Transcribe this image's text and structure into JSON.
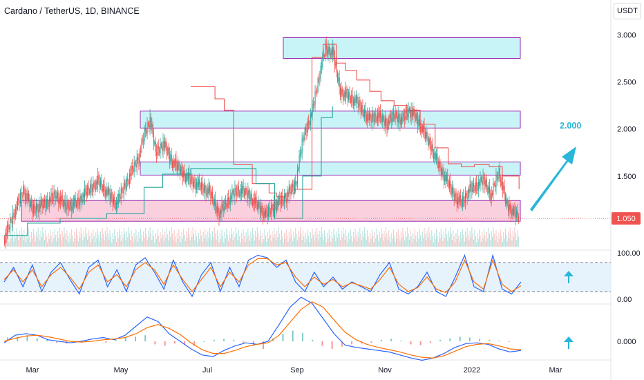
{
  "header": {
    "title": "Cardano / TetherUS, 1D, BINANCE",
    "currency": "USDT"
  },
  "colors": {
    "up": "#26a69a",
    "down": "#ef5350",
    "band_purple": "#9c27b0",
    "zone_cyan": "#b2f0f4",
    "zone_pink": "#f8bbd0",
    "arrow": "#29b6d8",
    "rsi_blue": "#2962ff",
    "rsi_orange": "#ff6d00",
    "stop_red": "#ef5350",
    "stop_green": "#26a69a",
    "price_label": "#ef5350"
  },
  "chart_data": [
    {
      "type": "candlestick",
      "name": "price",
      "x_ticks": [
        "Mar",
        "May",
        "Jul",
        "Sep",
        "Nov",
        "2022",
        "Mar"
      ],
      "y_ticks": [
        "3.000",
        "2.500",
        "2.000",
        "1.500",
        "1.050"
      ],
      "ylim": [
        0.75,
        3.15
      ],
      "current_price": "1.050",
      "annotation": "2.000",
      "zones": [
        {
          "low": 2.75,
          "high": 2.97,
          "color": "cyan"
        },
        {
          "low": 2.01,
          "high": 2.19,
          "color": "cyan"
        },
        {
          "low": 1.51,
          "high": 1.65,
          "color": "cyan"
        },
        {
          "low": 1.02,
          "high": 1.24,
          "color": "pink"
        }
      ],
      "close_path": [
        [
          0,
          0.85
        ],
        [
          8,
          1.05
        ],
        [
          14,
          1.2
        ],
        [
          20,
          1.35
        ],
        [
          30,
          1.15
        ],
        [
          45,
          1.22
        ],
        [
          55,
          1.3
        ],
        [
          65,
          1.18
        ],
        [
          78,
          1.22
        ],
        [
          90,
          1.35
        ],
        [
          100,
          1.45
        ],
        [
          112,
          1.3
        ],
        [
          120,
          1.2
        ],
        [
          128,
          1.38
        ],
        [
          136,
          1.55
        ],
        [
          144,
          1.7
        ],
        [
          150,
          1.95
        ],
        [
          156,
          2.1
        ],
        [
          162,
          1.75
        ],
        [
          170,
          1.85
        ],
        [
          180,
          1.65
        ],
        [
          190,
          1.55
        ],
        [
          200,
          1.45
        ],
        [
          212,
          1.38
        ],
        [
          220,
          1.32
        ],
        [
          230,
          1.1
        ],
        [
          240,
          1.25
        ],
        [
          250,
          1.35
        ],
        [
          262,
          1.3
        ],
        [
          272,
          1.18
        ],
        [
          280,
          1.08
        ],
        [
          290,
          1.2
        ],
        [
          302,
          1.28
        ],
        [
          312,
          1.42
        ],
        [
          320,
          1.9
        ],
        [
          330,
          2.2
        ],
        [
          338,
          2.6
        ],
        [
          344,
          2.85
        ],
        [
          352,
          2.8
        ],
        [
          360,
          2.4
        ],
        [
          368,
          2.35
        ],
        [
          376,
          2.3
        ],
        [
          384,
          2.2
        ],
        [
          392,
          2.1
        ],
        [
          400,
          2.15
        ],
        [
          410,
          2.05
        ],
        [
          418,
          2.15
        ],
        [
          426,
          2.1
        ],
        [
          434,
          2.2
        ],
        [
          442,
          2.1
        ],
        [
          450,
          1.95
        ],
        [
          458,
          1.8
        ],
        [
          466,
          1.6
        ],
        [
          474,
          1.45
        ],
        [
          482,
          1.3
        ],
        [
          490,
          1.22
        ],
        [
          498,
          1.35
        ],
        [
          506,
          1.4
        ],
        [
          514,
          1.45
        ],
        [
          522,
          1.3
        ],
        [
          530,
          1.55
        ],
        [
          538,
          1.2
        ],
        [
          546,
          1.1
        ],
        [
          552,
          1.06
        ]
      ],
      "trail_stop": [
        [
          200,
          2.45
        ],
        [
          214,
          2.45
        ],
        [
          226,
          2.32
        ],
        [
          236,
          2.2
        ],
        [
          246,
          1.62
        ],
        [
          258,
          1.62
        ],
        [
          266,
          1.42
        ],
        [
          274,
          1.42
        ],
        [
          284,
          1.32
        ],
        [
          292,
          1.28
        ],
        [
          302,
          1.32
        ],
        [
          312,
          1.36
        ],
        [
          330,
          2.76
        ],
        [
          342,
          2.9
        ],
        [
          356,
          2.7
        ],
        [
          366,
          2.62
        ],
        [
          378,
          2.52
        ],
        [
          392,
          2.4
        ],
        [
          404,
          2.3
        ],
        [
          418,
          2.25
        ],
        [
          432,
          2.2
        ],
        [
          446,
          2.05
        ],
        [
          462,
          1.8
        ],
        [
          476,
          1.63
        ],
        [
          490,
          1.6
        ],
        [
          504,
          1.62
        ],
        [
          520,
          1.6
        ],
        [
          534,
          1.5
        ],
        [
          552,
          1.36
        ]
      ],
      "trail_support": [
        [
          0,
          0.87
        ],
        [
          25,
          1.0
        ],
        [
          60,
          1.05
        ],
        [
          110,
          1.1
        ],
        [
          150,
          1.38
        ],
        [
          170,
          1.52
        ],
        [
          200,
          1.58
        ],
        [
          270,
          1.42
        ],
        [
          290,
          1.05
        ],
        [
          320,
          1.5
        ],
        [
          340,
          2.12
        ],
        [
          352,
          2.24
        ]
      ]
    },
    {
      "type": "line",
      "name": "oscillator",
      "y_ticks": [
        "100.00",
        "0.00"
      ],
      "upper_band": 80,
      "lower_band": 20,
      "series": [
        {
          "color": "#2962ff",
          "values": [
            40,
            70,
            30,
            75,
            20,
            60,
            80,
            45,
            15,
            70,
            85,
            30,
            65,
            20,
            75,
            90,
            60,
            25,
            85,
            40,
            10,
            55,
            80,
            20,
            70,
            30,
            85,
            95,
            90,
            70,
            85,
            40,
            20,
            60,
            30,
            50,
            25,
            40,
            30,
            20,
            55,
            80,
            25,
            15,
            30,
            60,
            20,
            10,
            50,
            95,
            30,
            20,
            95,
            25,
            15,
            40
          ]
        },
        {
          "color": "#ff6d00",
          "values": [
            45,
            65,
            40,
            65,
            30,
            55,
            70,
            50,
            25,
            60,
            75,
            40,
            55,
            30,
            65,
            80,
            65,
            35,
            75,
            45,
            20,
            45,
            70,
            30,
            60,
            40,
            75,
            88,
            88,
            75,
            80,
            50,
            30,
            50,
            35,
            45,
            30,
            38,
            32,
            25,
            45,
            70,
            35,
            20,
            28,
            50,
            25,
            18,
            40,
            85,
            40,
            25,
            85,
            35,
            20,
            32
          ]
        }
      ]
    },
    {
      "type": "histogram",
      "name": "macd",
      "y_ticks": [
        "0.000"
      ],
      "bars": [
        0.05,
        0.06,
        0.08,
        0.04,
        0.02,
        -0.02,
        -0.03,
        0.01,
        0.02,
        0.01,
        -0.02,
        0.03,
        0.05,
        0.06,
        0.08,
        -0.04,
        -0.06,
        -0.03,
        -0.05,
        -0.06,
        0.0,
        0.02,
        0.03,
        0.02,
        -0.02,
        -0.06,
        -0.1,
        0.04,
        0.1,
        0.14,
        0.11,
        0.02,
        -0.06,
        -0.1,
        -0.07,
        -0.04,
        -0.03,
        -0.02,
        0.02,
        0.03,
        0.01,
        -0.04,
        -0.05,
        -0.02,
        0.02,
        0.04,
        0.06,
        0.05,
        0.03,
        0.02,
        0.01,
        -0.01
      ],
      "macd": [
        -0.02,
        0.08,
        0.1,
        0.08,
        0.02,
        0.0,
        -0.02,
        0.0,
        0.03,
        0.05,
        0.02,
        0.08,
        0.2,
        0.32,
        0.26,
        0.1,
        0.0,
        -0.1,
        -0.18,
        -0.2,
        -0.12,
        -0.06,
        -0.02,
        -0.04,
        0.0,
        0.22,
        0.45,
        0.58,
        0.5,
        0.3,
        0.1,
        -0.05,
        -0.08,
        -0.1,
        -0.12,
        -0.14,
        -0.18,
        -0.22,
        -0.25,
        -0.22,
        -0.16,
        -0.08,
        -0.03,
        -0.02,
        -0.04,
        -0.1,
        -0.14,
        -0.12
      ],
      "signal": [
        0.0,
        0.04,
        0.07,
        0.08,
        0.06,
        0.03,
        0.0,
        -0.01,
        0.0,
        0.02,
        0.03,
        0.05,
        0.1,
        0.18,
        0.22,
        0.17,
        0.09,
        -0.02,
        -0.11,
        -0.16,
        -0.16,
        -0.12,
        -0.07,
        -0.04,
        -0.02,
        0.08,
        0.25,
        0.42,
        0.52,
        0.45,
        0.28,
        0.12,
        0.02,
        -0.04,
        -0.08,
        -0.11,
        -0.14,
        -0.18,
        -0.21,
        -0.22,
        -0.19,
        -0.13,
        -0.07,
        -0.04,
        -0.03,
        -0.06,
        -0.1,
        -0.11
      ]
    }
  ]
}
